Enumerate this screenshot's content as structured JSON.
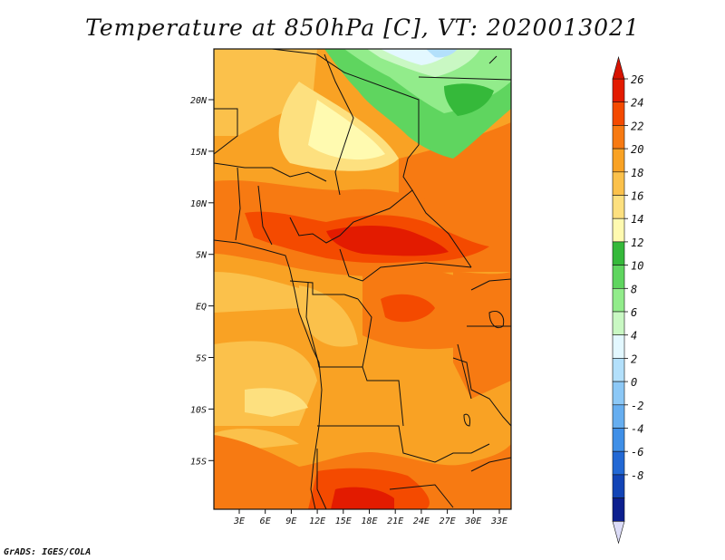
{
  "title": "Temperature at 850hPa [C], VT: 2020013021",
  "credit": "GrADS: IGES/COLA",
  "map": {
    "lat_labels": [
      "20N",
      "15N",
      "10N",
      "5N",
      "EQ",
      "5S",
      "10S",
      "15S"
    ],
    "lon_labels": [
      "3E",
      "6E",
      "9E",
      "12E",
      "15E",
      "18E",
      "21E",
      "24E",
      "27E",
      "30E",
      "33E"
    ]
  },
  "colorbar": {
    "labels": [
      "26",
      "24",
      "22",
      "20",
      "18",
      "16",
      "14",
      "12",
      "10",
      "8",
      "6",
      "4",
      "2",
      "0",
      "-2",
      "-4",
      "-6",
      "-8"
    ],
    "colors": [
      "#e31b00",
      "#f44a00",
      "#f77a12",
      "#f9a224",
      "#fbc14b",
      "#fde07f",
      "#fffab0",
      "#35b93a",
      "#5fd55f",
      "#92ec8b",
      "#c9f8c3",
      "#e3f8ff",
      "#b3e0fb",
      "#8cc8f6",
      "#66aef0",
      "#3f8fe7",
      "#2268d4",
      "#1244b6",
      "#0c1f8e"
    ],
    "over_color": "#d71200",
    "under_color": "#dcdcf8"
  }
}
